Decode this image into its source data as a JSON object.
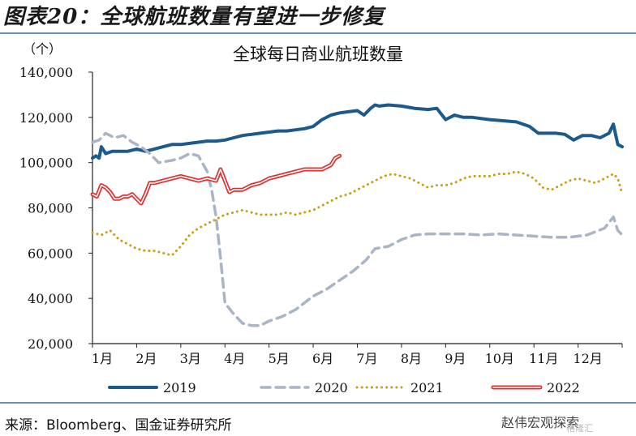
{
  "figure_title": "图表20：全球航班数量有望进一步修复",
  "source": "来源：Bloomberg、国金证券研究所",
  "watermark": "赵伟宏观探索",
  "watermark_sub": "格隆汇",
  "chart_data": {
    "type": "line",
    "title": "全球每日商业航班数量",
    "ylabel": "（个）",
    "ylim": [
      20000,
      140000
    ],
    "yticks": [
      "20,000",
      "40,000",
      "60,000",
      "80,000",
      "100,000",
      "120,000",
      "140,000"
    ],
    "ytick_values": [
      20000,
      40000,
      60000,
      80000,
      100000,
      120000,
      140000
    ],
    "months": [
      "1月",
      "2月",
      "3月",
      "4月",
      "5月",
      "6月",
      "7月",
      "8月",
      "9月",
      "10月",
      "11月",
      "12月"
    ],
    "xlim": [
      1,
      13
    ],
    "series": [
      {
        "name": "2019",
        "color": "#1b5a8a",
        "style": "solid",
        "x": [
          1.0,
          1.08,
          1.15,
          1.2,
          1.3,
          1.45,
          1.6,
          1.8,
          2.0,
          2.2,
          2.4,
          2.6,
          2.8,
          3.0,
          3.2,
          3.4,
          3.6,
          3.8,
          4.0,
          4.2,
          4.4,
          4.6,
          4.8,
          5.0,
          5.2,
          5.4,
          5.6,
          5.8,
          6.0,
          6.2,
          6.4,
          6.6,
          6.8,
          7.0,
          7.15,
          7.3,
          7.4,
          7.5,
          7.7,
          8.0,
          8.3,
          8.6,
          8.8,
          9.0,
          9.2,
          9.4,
          9.6,
          10.0,
          10.3,
          10.6,
          10.9,
          11.1,
          11.3,
          11.5,
          11.7,
          11.9,
          12.1,
          12.3,
          12.5,
          12.7,
          12.8,
          12.9,
          13.0
        ],
        "values": [
          102000,
          103000,
          102000,
          107000,
          104000,
          105000,
          105000,
          105000,
          106000,
          105000,
          106000,
          107000,
          108000,
          108000,
          108500,
          109000,
          109500,
          109500,
          110000,
          111000,
          112000,
          112500,
          113000,
          113500,
          114000,
          114000,
          114500,
          115000,
          116000,
          119000,
          121000,
          122000,
          122500,
          123000,
          121000,
          124000,
          125500,
          125000,
          125500,
          125000,
          124000,
          123500,
          124000,
          119000,
          121000,
          120000,
          120000,
          119000,
          118500,
          118000,
          116000,
          113000,
          113000,
          113000,
          112500,
          110000,
          112000,
          112000,
          111000,
          113000,
          117000,
          108000,
          107000
        ]
      },
      {
        "name": "2020",
        "color": "#a9b4c6",
        "style": "dash",
        "x": [
          1.0,
          1.15,
          1.3,
          1.5,
          1.7,
          1.9,
          2.1,
          2.3,
          2.5,
          2.8,
          3.0,
          3.2,
          3.4,
          3.6,
          3.7,
          3.8,
          3.9,
          4.0,
          4.2,
          4.4,
          4.6,
          4.8,
          5.0,
          5.3,
          5.6,
          6.0,
          6.3,
          6.6,
          6.9,
          7.2,
          7.4,
          7.7,
          8.0,
          8.3,
          8.6,
          9.0,
          9.4,
          9.8,
          10.2,
          10.6,
          11.0,
          11.4,
          11.8,
          12.2,
          12.6,
          12.8,
          12.9,
          13.0
        ],
        "values": [
          109000,
          110000,
          113000,
          111000,
          112000,
          109000,
          107000,
          104000,
          100000,
          101000,
          102000,
          104000,
          103000,
          96000,
          88000,
          76000,
          58000,
          38000,
          33000,
          29000,
          28000,
          28000,
          30000,
          32000,
          35000,
          41000,
          44000,
          48000,
          52000,
          57000,
          62000,
          63000,
          66000,
          68000,
          68500,
          68500,
          68500,
          68000,
          68500,
          68000,
          67500,
          67000,
          67000,
          68000,
          71000,
          76000,
          70000,
          68000
        ]
      },
      {
        "name": "2021",
        "color": "#c6a013",
        "style": "dot",
        "x": [
          1.0,
          1.2,
          1.4,
          1.6,
          1.8,
          2.0,
          2.2,
          2.4,
          2.6,
          2.8,
          3.0,
          3.2,
          3.4,
          3.6,
          3.8,
          4.0,
          4.2,
          4.4,
          4.6,
          4.8,
          5.0,
          5.2,
          5.4,
          5.6,
          5.8,
          6.0,
          6.2,
          6.4,
          6.6,
          6.8,
          7.0,
          7.2,
          7.4,
          7.6,
          7.8,
          8.0,
          8.2,
          8.4,
          8.6,
          8.8,
          9.0,
          9.2,
          9.4,
          9.6,
          9.8,
          10.0,
          10.2,
          10.4,
          10.6,
          10.8,
          11.0,
          11.2,
          11.4,
          11.6,
          11.8,
          12.0,
          12.2,
          12.4,
          12.6,
          12.8,
          12.9,
          13.0
        ],
        "values": [
          69000,
          68000,
          70000,
          66000,
          64000,
          62000,
          61000,
          61000,
          60000,
          59000,
          63000,
          68000,
          71000,
          73000,
          75000,
          77000,
          78000,
          79000,
          78000,
          77000,
          77000,
          77000,
          78000,
          77000,
          78000,
          79000,
          81000,
          83000,
          85000,
          86000,
          88000,
          90000,
          92000,
          94000,
          95000,
          94000,
          93000,
          91000,
          89000,
          90000,
          90000,
          91000,
          93000,
          94000,
          94000,
          94000,
          95000,
          95000,
          96000,
          95000,
          93000,
          89000,
          88000,
          90000,
          92000,
          93000,
          92000,
          91000,
          93000,
          95000,
          93000,
          86000
        ]
      },
      {
        "name": "2022",
        "color": "#e0302d",
        "style": "double",
        "x": [
          1.0,
          1.1,
          1.2,
          1.3,
          1.4,
          1.5,
          1.6,
          1.7,
          1.8,
          1.9,
          2.0,
          2.1,
          2.2,
          2.3,
          2.4,
          2.6,
          2.8,
          3.0,
          3.2,
          3.4,
          3.6,
          3.8,
          3.9,
          4.0,
          4.1,
          4.2,
          4.4,
          4.6,
          4.8,
          5.0,
          5.2,
          5.4,
          5.6,
          5.8,
          6.0,
          6.2,
          6.4,
          6.5,
          6.6
        ],
        "values": [
          86000,
          85000,
          90000,
          89000,
          87000,
          84000,
          84000,
          85000,
          85000,
          86000,
          84000,
          82000,
          86000,
          91000,
          91000,
          92000,
          93000,
          94000,
          93000,
          92000,
          93000,
          92000,
          97000,
          92000,
          87000,
          88000,
          88000,
          90000,
          91000,
          93000,
          94000,
          95000,
          96000,
          97000,
          97000,
          97000,
          99000,
          102000,
          103000
        ]
      }
    ]
  }
}
